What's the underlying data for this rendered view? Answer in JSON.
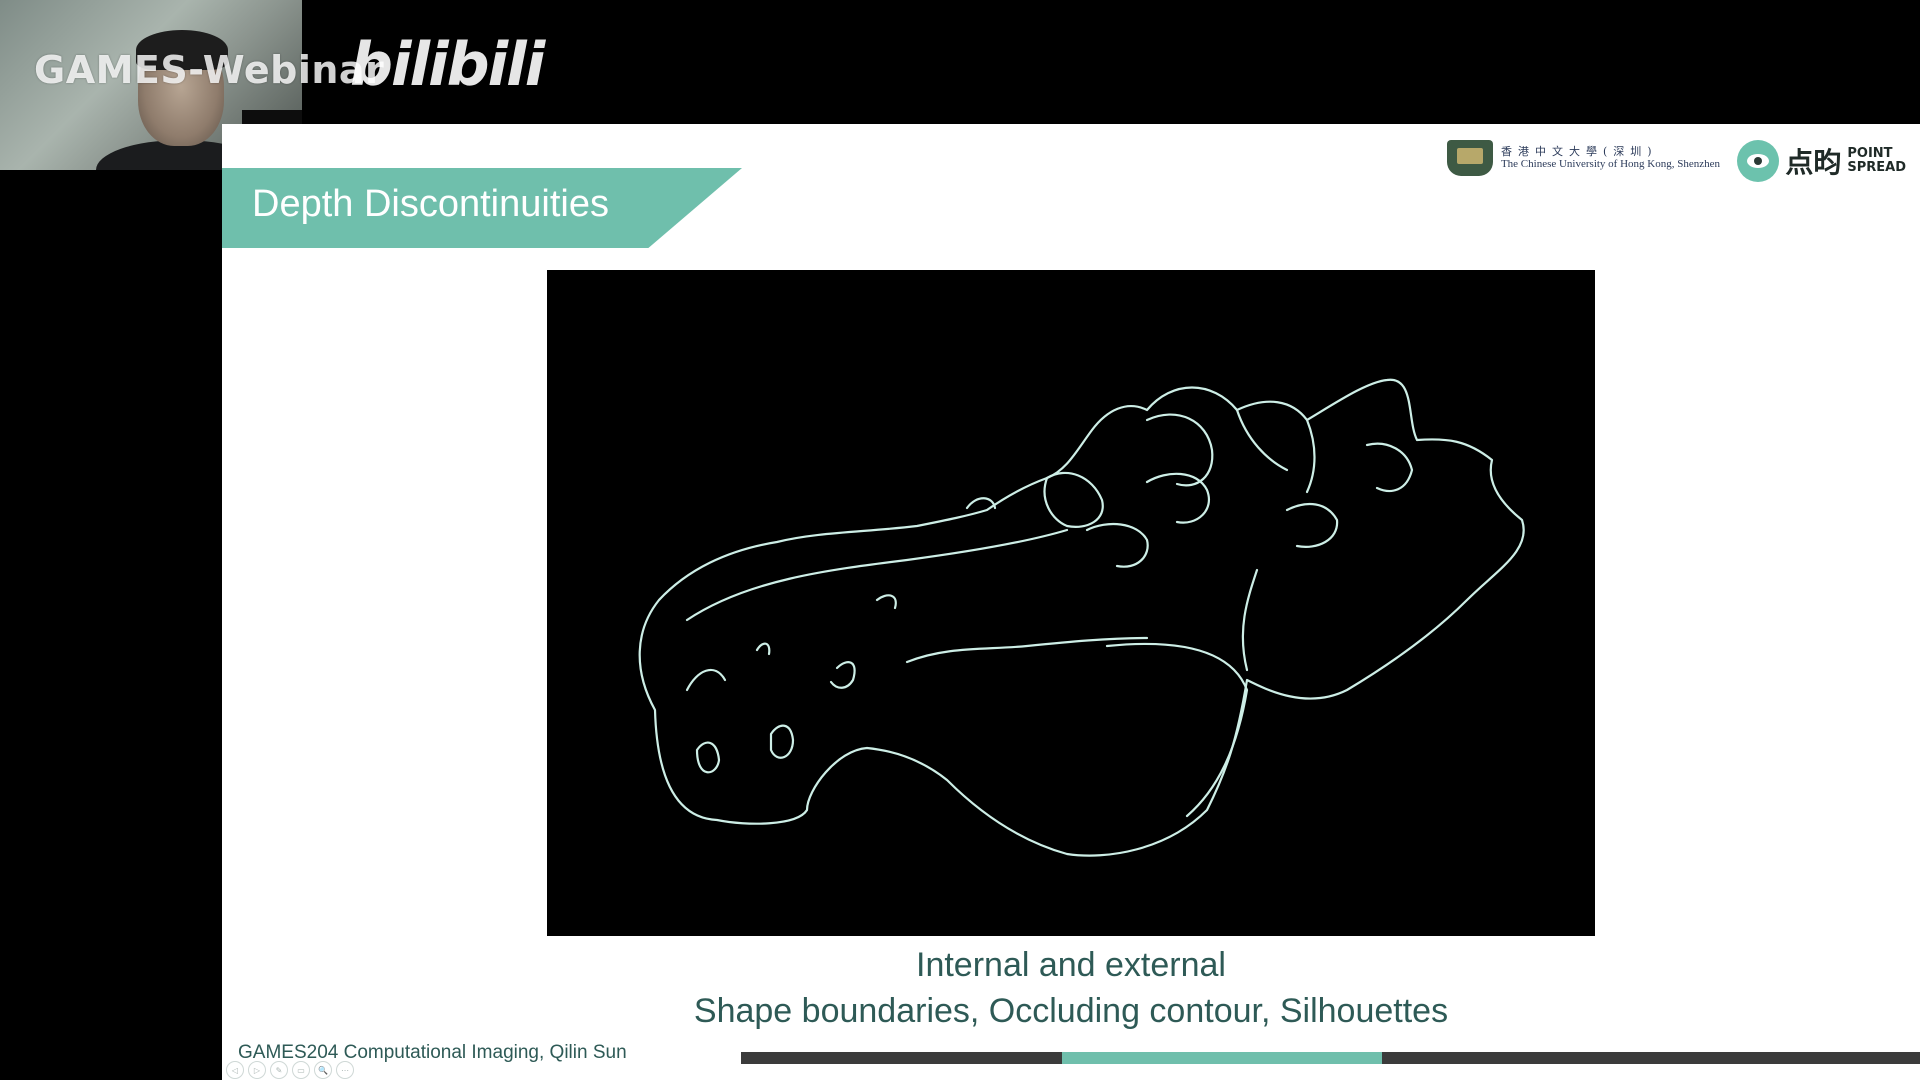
{
  "overlay": {
    "title": "GAMES-Webinar",
    "brand": "bilibili"
  },
  "logos": {
    "cuhk_cn": "香港中文大學(深圳)",
    "cuhk_en": "The Chinese University of Hong Kong, Shenzhen",
    "pointspread_cn": "点昀",
    "pointspread_en_1": "POINT",
    "pointspread_en_2": "SPREAD"
  },
  "slide": {
    "title": "Depth Discontinuities",
    "caption_line1": "Internal and external",
    "caption_line2": "Shape boundaries, Occluding contour, Silhouettes",
    "footer": "GAMES204 Computational Imaging, Qilin Sun"
  },
  "nav_icons": [
    "◁",
    "▷",
    "✎",
    "▭",
    "🔍",
    "⋯"
  ],
  "progress": {
    "segments": [
      {
        "color": "#3b3b3b",
        "fraction": 0.272
      },
      {
        "color": "#6fbfac",
        "fraction": 0.272
      },
      {
        "color": "#3b3b3b",
        "fraction": 0.456
      }
    ]
  },
  "colors": {
    "accent": "#6fbfac",
    "text_teal": "#2e5a56",
    "edge_line": "#cdeee6"
  }
}
